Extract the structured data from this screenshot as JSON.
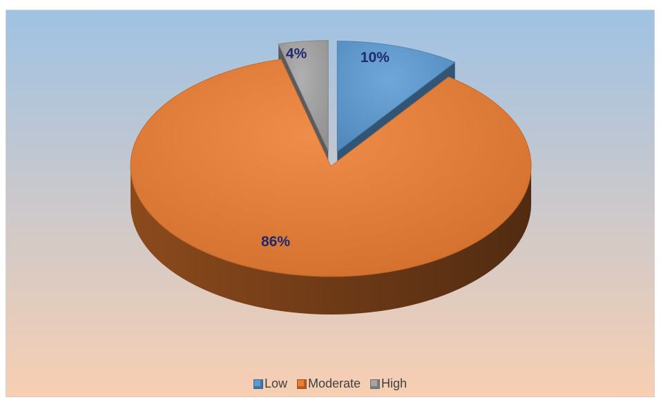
{
  "colors": {
    "background_top": "#9fc2e4",
    "background_bottom": "#f8cfb2",
    "label_text": "#1f2a6e"
  },
  "chart_data": {
    "type": "pie",
    "variant": "3d-exploded",
    "title": "",
    "legend_position": "bottom",
    "start_angle_deg": 0,
    "slices": [
      {
        "label": "Low",
        "value": 10,
        "display": "10%",
        "color": "#5b9bd5",
        "exploded": true
      },
      {
        "label": "Moderate",
        "value": 86,
        "display": "86%",
        "color": "#ed7d31",
        "exploded": false
      },
      {
        "label": "High",
        "value": 4,
        "display": "4%",
        "color": "#a5a5a5",
        "exploded": true
      }
    ]
  }
}
